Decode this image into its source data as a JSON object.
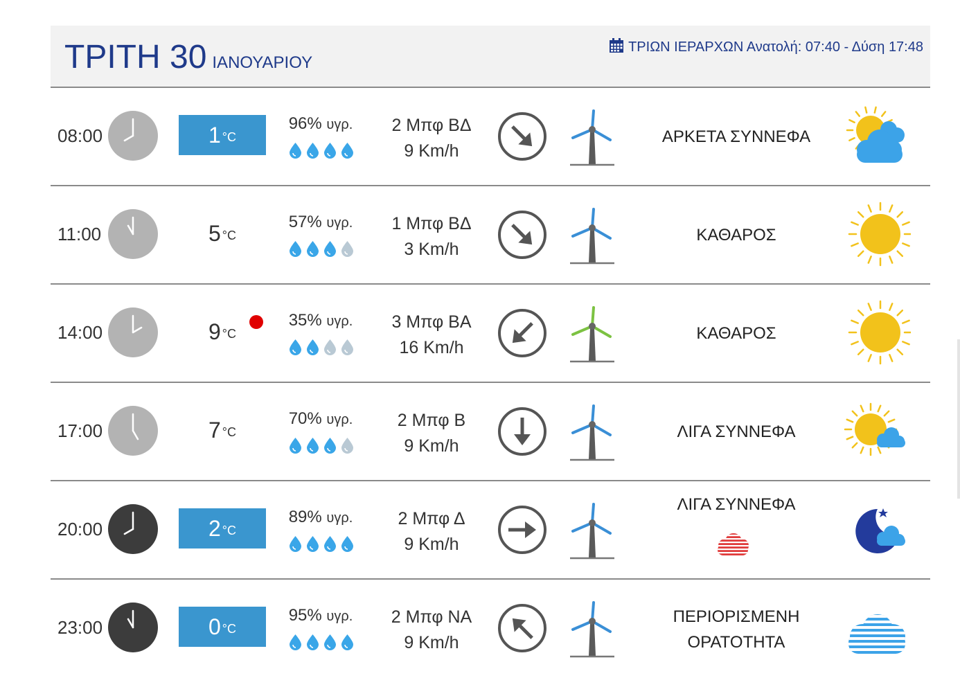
{
  "header": {
    "day": "ΤΡΙΤΗ 30",
    "month": "ΙΑΝΟΥΑΡΙΟΥ",
    "info": "ΤΡΙΩΝ ΙΕΡΑΡΧΩΝ Ανατολή: 07:40  - Δύση 17:48",
    "icon": "calendar-icon"
  },
  "colors": {
    "accent": "#1f3a8a",
    "temp_box": "#3a96cf",
    "drop_full": "#3aa6e8",
    "drop_empty": "#b9c9d4",
    "turbine_blue": "#3a8fd6",
    "turbine_green": "#7cc242",
    "sun": "#f2c21b",
    "cloud": "#3ca3e8",
    "moon": "#233b9c",
    "red_dot": "#e00000"
  },
  "rows": [
    {
      "time": "08:00",
      "clock": "light",
      "hour": 8,
      "temp": "1",
      "unit": "°C",
      "temp_boxed": true,
      "humidity": "96%",
      "hum_label": "υγρ.",
      "drops": 4,
      "wind_line1": "2 Μπφ ΒΔ",
      "wind_line2": "9 Km/h",
      "arrow": "down-right",
      "turbine": "blue",
      "condition": [
        "ΑΡΚΕΤΑ ΣΥΝΝΕΦΑ"
      ],
      "icon": "sun-cloud-large-icon"
    },
    {
      "time": "11:00",
      "clock": "light",
      "hour": 11,
      "temp": "5",
      "unit": "°C",
      "temp_boxed": false,
      "humidity": "57%",
      "hum_label": "υγρ.",
      "drops": 3,
      "wind_line1": "1 Μπφ ΒΔ",
      "wind_line2": "3 Km/h",
      "arrow": "down-right",
      "turbine": "blue",
      "condition": [
        "ΚΑΘΑΡΟΣ"
      ],
      "icon": "sun-icon"
    },
    {
      "time": "14:00",
      "clock": "light",
      "hour": 2,
      "temp": "9",
      "unit": "°C",
      "temp_boxed": false,
      "red_dot": true,
      "humidity": "35%",
      "hum_label": "υγρ.",
      "drops": 2,
      "wind_line1": "3 Μπφ ΒΑ",
      "wind_line2": "16 Km/h",
      "arrow": "down-left",
      "turbine": "green",
      "condition": [
        "ΚΑΘΑΡΟΣ"
      ],
      "icon": "sun-icon"
    },
    {
      "time": "17:00",
      "clock": "light",
      "hour": 5,
      "temp": "7",
      "unit": "°C",
      "temp_boxed": false,
      "humidity": "70%",
      "hum_label": "υγρ.",
      "drops": 3,
      "wind_line1": "2 Μπφ Β",
      "wind_line2": "9 Km/h",
      "arrow": "down",
      "turbine": "blue",
      "condition": [
        "ΛΙΓΑ ΣΥΝΝΕΦΑ"
      ],
      "icon": "sun-small-cloud-icon"
    },
    {
      "time": "20:00",
      "clock": "dark",
      "hour": 8,
      "temp": "2",
      "unit": "°C",
      "temp_boxed": true,
      "humidity": "89%",
      "hum_label": "υγρ.",
      "drops": 4,
      "wind_line1": "2 Μπφ Δ",
      "wind_line2": "9 Km/h",
      "arrow": "right",
      "turbine": "blue",
      "condition": [
        "ΛΙΓΑ ΣΥΝΝΕΦΑ"
      ],
      "extra_icon": "red-haze-cloud-icon",
      "icon": "moon-cloud-icon"
    },
    {
      "time": "23:00",
      "clock": "dark",
      "hour": 11,
      "temp": "0",
      "unit": "°C",
      "temp_boxed": true,
      "humidity": "95%",
      "hum_label": "υγρ.",
      "drops": 4,
      "wind_line1": "2 Μπφ ΝΑ",
      "wind_line2": "9 Km/h",
      "arrow": "up-left",
      "turbine": "blue",
      "condition": [
        "ΠΕΡΙΟΡΙΣΜΕΝΗ",
        "ΟΡΑΤΟΤΗΤΑ"
      ],
      "icon": "haze-cloud-icon"
    }
  ]
}
